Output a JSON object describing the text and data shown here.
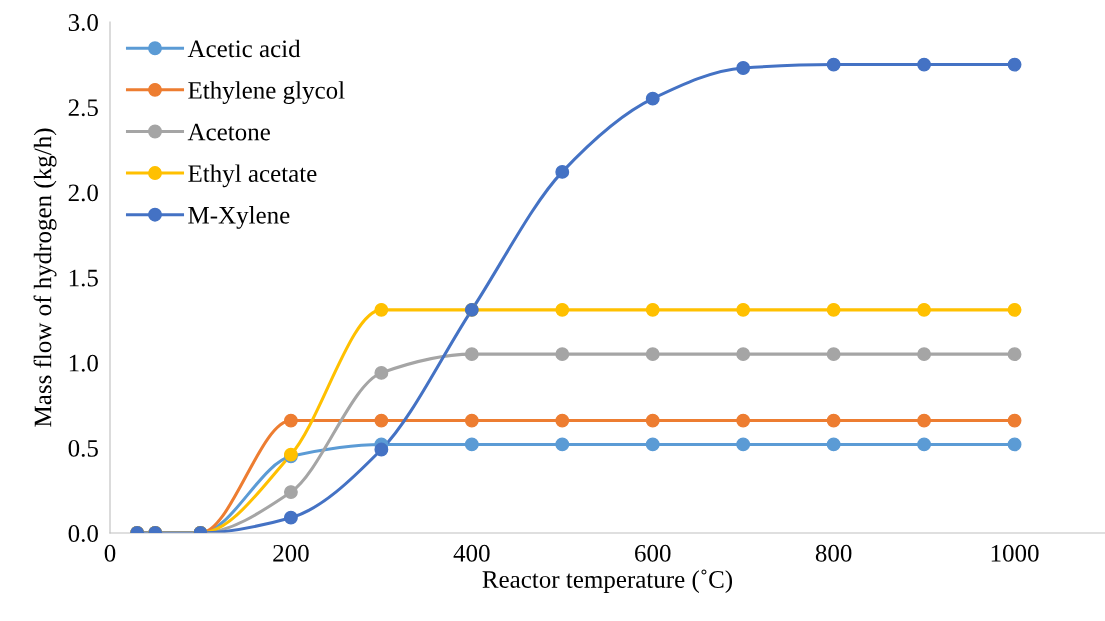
{
  "chart_data": {
    "type": "line",
    "xlabel": "Reactor temperature (˚C)",
    "ylabel": "Mass flow of hydrogen (kg/h)",
    "x": [
      30,
      50,
      100,
      200,
      300,
      400,
      500,
      600,
      700,
      800,
      900,
      1000
    ],
    "series": [
      {
        "name": "Acetic acid",
        "color": "#5b9bd5",
        "values": [
          0,
          0,
          0,
          0.45,
          0.52,
          0.52,
          0.52,
          0.52,
          0.52,
          0.52,
          0.52,
          0.52
        ]
      },
      {
        "name": "Ethylene glycol",
        "color": "#ed7d31",
        "values": [
          0,
          0,
          0,
          0.66,
          0.66,
          0.66,
          0.66,
          0.66,
          0.66,
          0.66,
          0.66,
          0.66
        ]
      },
      {
        "name": "Acetone",
        "color": "#a5a5a5",
        "values": [
          0,
          0,
          0,
          0.24,
          0.94,
          1.05,
          1.05,
          1.05,
          1.05,
          1.05,
          1.05,
          1.05
        ]
      },
      {
        "name": "Ethyl acetate",
        "color": "#ffc000",
        "values": [
          0,
          0,
          0,
          0.46,
          1.31,
          1.31,
          1.31,
          1.31,
          1.31,
          1.31,
          1.31,
          1.31
        ]
      },
      {
        "name": "M-Xylene",
        "color": "#4472c4",
        "values": [
          0,
          0,
          0,
          0.09,
          0.49,
          1.31,
          2.12,
          2.55,
          2.73,
          2.75,
          2.75,
          2.75
        ]
      }
    ],
    "xlim": [
      0,
      1100
    ],
    "xticks": [
      0,
      200,
      400,
      600,
      800,
      1000
    ],
    "ylim": [
      0,
      3.0
    ],
    "yticks": [
      {
        "value": 0,
        "label": "0.0"
      },
      {
        "value": 0.5,
        "label": "0.5"
      },
      {
        "value": 1.0,
        "label": "1.0"
      },
      {
        "value": 1.5,
        "label": "1.5"
      },
      {
        "value": 2.0,
        "label": "2.0"
      },
      {
        "value": 2.5,
        "label": "2.5"
      },
      {
        "value": 3.0,
        "label": "3.0"
      }
    ],
    "grid": false,
    "legend": "top left",
    "marker": "circle",
    "line_style": "solid"
  }
}
